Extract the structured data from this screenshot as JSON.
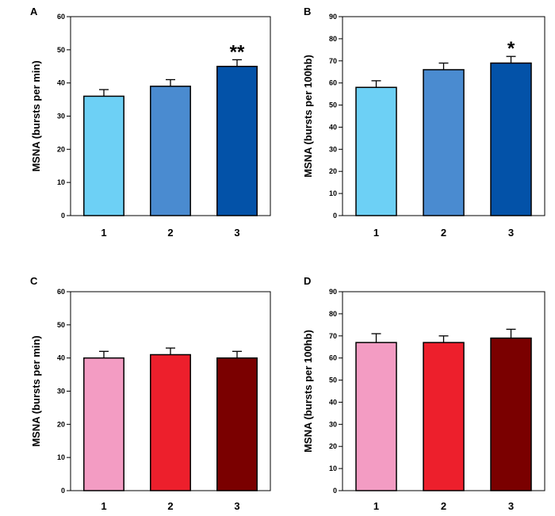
{
  "chart_data": [
    {
      "type": "bar",
      "panel": "A",
      "ylabel": "MSNA (bursts per min)",
      "ylim": [
        0,
        60
      ],
      "yticks": [
        0,
        10,
        20,
        30,
        40,
        50,
        60
      ],
      "categories": [
        "1",
        "2",
        "3"
      ],
      "values": [
        36,
        39,
        45
      ],
      "errors": [
        2,
        2,
        2
      ],
      "colors": [
        "#6dd0f5",
        "#4a8bd0",
        "#0352a8"
      ],
      "annotations": [
        "",
        "",
        "**"
      ]
    },
    {
      "type": "bar",
      "panel": "B",
      "ylabel": "MSNA (bursts per 100hb)",
      "ylim": [
        0,
        90
      ],
      "yticks": [
        0,
        10,
        20,
        30,
        40,
        50,
        60,
        70,
        80,
        90
      ],
      "categories": [
        "1",
        "2",
        "3"
      ],
      "values": [
        58,
        66,
        69
      ],
      "errors": [
        3,
        3,
        3
      ],
      "colors": [
        "#6dd0f5",
        "#4a8bd0",
        "#0352a8"
      ],
      "annotations": [
        "",
        "",
        "*"
      ]
    },
    {
      "type": "bar",
      "panel": "C",
      "ylabel": "MSNA (bursts per min)",
      "ylim": [
        0,
        60
      ],
      "yticks": [
        0,
        10,
        20,
        30,
        40,
        50,
        60
      ],
      "categories": [
        "1",
        "2",
        "3"
      ],
      "values": [
        40,
        41,
        40
      ],
      "errors": [
        2,
        2,
        2
      ],
      "colors": [
        "#f39cc3",
        "#ed1f2c",
        "#7a0000"
      ],
      "annotations": [
        "",
        "",
        ""
      ]
    },
    {
      "type": "bar",
      "panel": "D",
      "ylabel": "MSNA (bursts per 100hb)",
      "ylim": [
        0,
        90
      ],
      "yticks": [
        0,
        10,
        20,
        30,
        40,
        50,
        60,
        70,
        80,
        90
      ],
      "categories": [
        "1",
        "2",
        "3"
      ],
      "values": [
        67,
        67,
        69
      ],
      "errors": [
        4,
        3,
        4
      ],
      "colors": [
        "#f39cc3",
        "#ed1f2c",
        "#7a0000"
      ],
      "annotations": [
        "",
        "",
        ""
      ]
    }
  ]
}
